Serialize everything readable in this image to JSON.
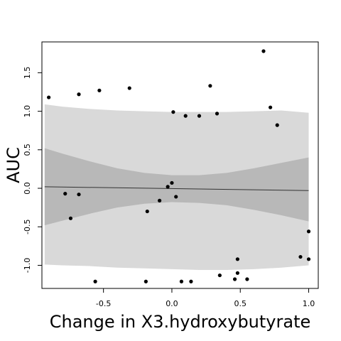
{
  "chart_data": {
    "type": "scatter",
    "title": "",
    "xlabel": "Change in X3.hydroxybutyrate",
    "ylabel": "AUC",
    "xlim": [
      -0.95,
      1.07
    ],
    "ylim": [
      -1.3,
      1.9
    ],
    "x_ticks": [
      -0.5,
      0.0,
      0.5,
      1.0
    ],
    "x_tick_labels": [
      "-0.5",
      "0.0",
      "0.5",
      "1.0"
    ],
    "y_ticks": [
      -1.0,
      -0.5,
      0.0,
      0.5,
      1.0,
      1.5
    ],
    "y_tick_labels": [
      "-1.0",
      "-0.5",
      "0.0",
      "0.5",
      "1.0",
      "1.5"
    ],
    "grid": false,
    "regression_line": {
      "x": [
        -0.93,
        1.0
      ],
      "y": [
        0.02,
        -0.03
      ]
    },
    "outer_band": {
      "x": [
        -0.93,
        -0.8,
        -0.6,
        -0.4,
        -0.2,
        0.0,
        0.2,
        0.4,
        0.6,
        0.8,
        1.0
      ],
      "upper": [
        1.09,
        1.06,
        1.03,
        1.01,
        1.0,
        0.99,
        0.99,
        0.99,
        1.0,
        1.01,
        0.98
      ],
      "lower": [
        -0.99,
        -1.0,
        -1.01,
        -1.03,
        -1.04,
        -1.05,
        -1.06,
        -1.06,
        -1.05,
        -1.03,
        -1.0
      ]
    },
    "inner_band": {
      "x": [
        -0.93,
        -0.8,
        -0.6,
        -0.4,
        -0.2,
        0.0,
        0.2,
        0.4,
        0.6,
        0.8,
        1.0
      ],
      "upper": [
        0.52,
        0.45,
        0.35,
        0.26,
        0.2,
        0.17,
        0.17,
        0.2,
        0.26,
        0.33,
        0.4
      ],
      "lower": [
        -0.48,
        -0.42,
        -0.33,
        -0.25,
        -0.2,
        -0.18,
        -0.19,
        -0.22,
        -0.28,
        -0.35,
        -0.43
      ]
    },
    "points": {
      "x": [
        -0.9,
        -0.68,
        -0.53,
        -0.31,
        0.28,
        0.67,
        -0.78,
        -0.74,
        -0.68,
        0.01,
        0.1,
        0.2,
        0.33,
        0.72,
        0.77,
        -0.03,
        0.0,
        0.03,
        -0.09,
        -0.18,
        0.48,
        0.94,
        1.0,
        0.35,
        0.48,
        0.46,
        0.55,
        -0.56,
        -0.19,
        0.07,
        0.14,
        1.0
      ],
      "y": [
        1.18,
        1.22,
        1.27,
        1.3,
        1.33,
        1.78,
        -0.07,
        -0.39,
        -0.08,
        0.99,
        0.94,
        0.94,
        0.97,
        1.05,
        0.82,
        0.02,
        0.07,
        -0.11,
        -0.16,
        -0.3,
        -0.92,
        -0.89,
        -0.92,
        -1.13,
        -1.1,
        -1.18,
        -1.18,
        -1.21,
        -1.21,
        -1.21,
        -1.21,
        -0.56
      ]
    }
  }
}
